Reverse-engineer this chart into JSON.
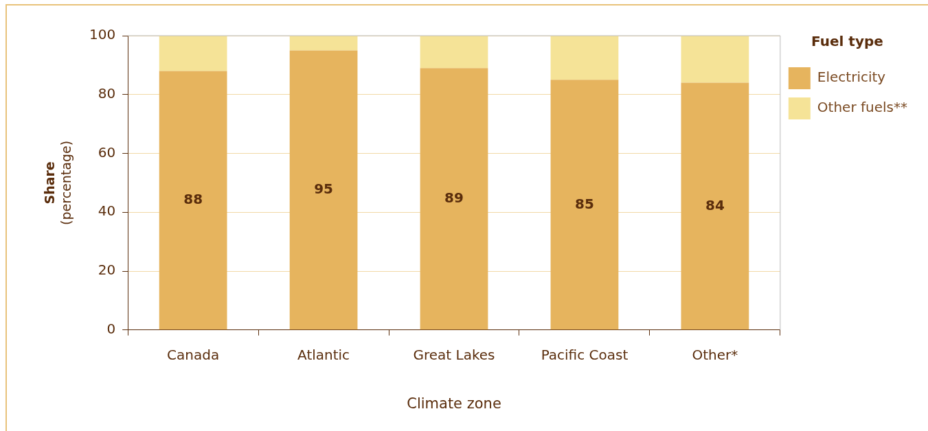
{
  "chart_data": {
    "type": "bar",
    "stacked": true,
    "xlabel": "Climate zone",
    "ylabel": "Share\n(percentage)",
    "legend_title": "Fuel type",
    "legend": "right",
    "grid": "y",
    "categories": [
      "Canada",
      "Atlantic",
      "Great Lakes",
      "Pacific Coast",
      "Other*"
    ],
    "ylim": [
      0,
      100
    ],
    "yticks": [
      0,
      20,
      40,
      60,
      80,
      100
    ],
    "series": [
      {
        "name": "Electricity",
        "color": "#e6b45e",
        "values": [
          88,
          95,
          89,
          85,
          84
        ],
        "value_labels": [
          "88",
          "95",
          "89",
          "85",
          "84"
        ]
      },
      {
        "name": "Other fuels**",
        "color": "#f5e397",
        "values": [
          12,
          5,
          11,
          15,
          16
        ]
      }
    ]
  }
}
